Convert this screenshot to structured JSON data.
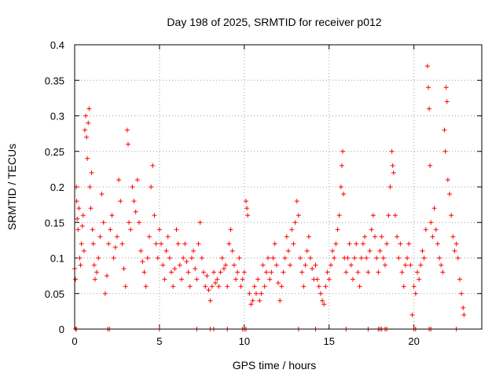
{
  "chart_data": {
    "type": "scatter",
    "title": "Day 198 of 2025, SRMTID for receiver p012",
    "xlabel": "GPS time / hours",
    "ylabel": "SRMTID / TECUs",
    "xlim": [
      0,
      24
    ],
    "ylim": [
      0,
      0.4
    ],
    "grid": true,
    "marker": "plus",
    "color": "#ff0000",
    "xticks": [
      0,
      5,
      10,
      15,
      20
    ],
    "xtick_labels": [
      "0",
      "5",
      "10",
      "15",
      "20"
    ],
    "yticks": [
      0,
      0.05,
      0.1,
      0.15,
      0.2,
      0.25,
      0.3,
      0.35,
      0.4
    ],
    "ytick_labels": [
      "0",
      "0.05",
      "0.1",
      "0.15",
      "0.2",
      "0.25",
      "0.3",
      "0.35",
      "0.4"
    ],
    "series": [
      {
        "name": "SRMTID",
        "points": [
          [
            0.0,
            0.085
          ],
          [
            0.05,
            0.07
          ],
          [
            0.1,
            0.2
          ],
          [
            0.12,
            0.18
          ],
          [
            0.15,
            0.155
          ],
          [
            0.2,
            0.14
          ],
          [
            0.25,
            0.17
          ],
          [
            0.3,
            0.1
          ],
          [
            0.35,
            0.09
          ],
          [
            0.4,
            0.12
          ],
          [
            0.45,
            0.145
          ],
          [
            0.5,
            0.16
          ],
          [
            0.55,
            0.11
          ],
          [
            0.6,
            0.28
          ],
          [
            0.65,
            0.3
          ],
          [
            0.7,
            0.27
          ],
          [
            0.75,
            0.24
          ],
          [
            0.8,
            0.29
          ],
          [
            0.85,
            0.31
          ],
          [
            0.9,
            0.2
          ],
          [
            0.95,
            0.17
          ],
          [
            1.0,
            0.22
          ],
          [
            1.05,
            0.14
          ],
          [
            1.1,
            0.12
          ],
          [
            1.15,
            0.09
          ],
          [
            1.2,
            0.07
          ],
          [
            1.3,
            0.08
          ],
          [
            1.4,
            0.1
          ],
          [
            1.5,
            0.13
          ],
          [
            1.6,
            0.19
          ],
          [
            1.7,
            0.15
          ],
          [
            1.8,
            0.05
          ],
          [
            1.9,
            0.075
          ],
          [
            2.0,
            0.12
          ],
          [
            2.1,
            0.14
          ],
          [
            2.2,
            0.16
          ],
          [
            2.3,
            0.1
          ],
          [
            2.4,
            0.115
          ],
          [
            2.5,
            0.13
          ],
          [
            2.6,
            0.21
          ],
          [
            2.7,
            0.18
          ],
          [
            2.8,
            0.12
          ],
          [
            2.9,
            0.085
          ],
          [
            3.0,
            0.06
          ],
          [
            3.1,
            0.28
          ],
          [
            3.15,
            0.26
          ],
          [
            3.2,
            0.15
          ],
          [
            3.3,
            0.14
          ],
          [
            3.4,
            0.2
          ],
          [
            3.5,
            0.18
          ],
          [
            3.6,
            0.165
          ],
          [
            3.7,
            0.21
          ],
          [
            3.8,
            0.15
          ],
          [
            3.9,
            0.11
          ],
          [
            4.0,
            0.095
          ],
          [
            4.1,
            0.08
          ],
          [
            4.2,
            0.06
          ],
          [
            4.3,
            0.1
          ],
          [
            4.4,
            0.13
          ],
          [
            4.5,
            0.2
          ],
          [
            4.6,
            0.23
          ],
          [
            4.7,
            0.16
          ],
          [
            4.8,
            0.12
          ],
          [
            4.9,
            0.1
          ],
          [
            5.0,
            0.14
          ],
          [
            5.1,
            0.12
          ],
          [
            5.2,
            0.09
          ],
          [
            5.3,
            0.07
          ],
          [
            5.4,
            0.11
          ],
          [
            5.5,
            0.13
          ],
          [
            5.6,
            0.1
          ],
          [
            5.7,
            0.08
          ],
          [
            5.8,
            0.06
          ],
          [
            5.9,
            0.085
          ],
          [
            6.0,
            0.14
          ],
          [
            6.1,
            0.12
          ],
          [
            6.2,
            0.09
          ],
          [
            6.3,
            0.07
          ],
          [
            6.4,
            0.1
          ],
          [
            6.5,
            0.12
          ],
          [
            6.6,
            0.095
          ],
          [
            6.7,
            0.08
          ],
          [
            6.8,
            0.06
          ],
          [
            6.9,
            0.1
          ],
          [
            7.0,
            0.11
          ],
          [
            7.1,
            0.085
          ],
          [
            7.2,
            0.07
          ],
          [
            7.3,
            0.12
          ],
          [
            7.4,
            0.15
          ],
          [
            7.5,
            0.1
          ],
          [
            7.6,
            0.08
          ],
          [
            7.7,
            0.06
          ],
          [
            7.8,
            0.075
          ],
          [
            7.9,
            0.055
          ],
          [
            8.0,
            0.04
          ],
          [
            8.1,
            0.06
          ],
          [
            8.2,
            0.08
          ],
          [
            8.3,
            0.065
          ],
          [
            8.4,
            0.07
          ],
          [
            8.5,
            0.06
          ],
          [
            8.6,
            0.08
          ],
          [
            8.7,
            0.1
          ],
          [
            8.8,
            0.085
          ],
          [
            8.9,
            0.09
          ],
          [
            9.0,
            0.06
          ],
          [
            9.1,
            0.12
          ],
          [
            9.2,
            0.14
          ],
          [
            9.3,
            0.11
          ],
          [
            9.4,
            0.09
          ],
          [
            9.5,
            0.07
          ],
          [
            9.6,
            0.08
          ],
          [
            9.7,
            0.1
          ],
          [
            9.8,
            0.06
          ],
          [
            9.9,
            0.07
          ],
          [
            10.0,
            0.08
          ],
          [
            10.1,
            0.18
          ],
          [
            10.15,
            0.17
          ],
          [
            10.2,
            0.16
          ],
          [
            10.3,
            0.05
          ],
          [
            10.4,
            0.035
          ],
          [
            10.5,
            0.04
          ],
          [
            10.6,
            0.06
          ],
          [
            10.7,
            0.05
          ],
          [
            10.8,
            0.07
          ],
          [
            10.9,
            0.04
          ],
          [
            11.0,
            0.05
          ],
          [
            11.1,
            0.09
          ],
          [
            11.2,
            0.06
          ],
          [
            11.3,
            0.08
          ],
          [
            11.4,
            0.1
          ],
          [
            11.5,
            0.07
          ],
          [
            11.6,
            0.08
          ],
          [
            11.7,
            0.1
          ],
          [
            11.8,
            0.12
          ],
          [
            11.9,
            0.09
          ],
          [
            12.0,
            0.065
          ],
          [
            12.1,
            0.04
          ],
          [
            12.2,
            0.06
          ],
          [
            12.3,
            0.08
          ],
          [
            12.4,
            0.1
          ],
          [
            12.5,
            0.13
          ],
          [
            12.6,
            0.11
          ],
          [
            12.7,
            0.09
          ],
          [
            12.8,
            0.14
          ],
          [
            12.9,
            0.12
          ],
          [
            13.0,
            0.15
          ],
          [
            13.1,
            0.18
          ],
          [
            13.2,
            0.16
          ],
          [
            13.3,
            0.1
          ],
          [
            13.4,
            0.08
          ],
          [
            13.5,
            0.06
          ],
          [
            13.6,
            0.09
          ],
          [
            13.7,
            0.11
          ],
          [
            13.8,
            0.13
          ],
          [
            13.9,
            0.1
          ],
          [
            14.0,
            0.085
          ],
          [
            14.1,
            0.07
          ],
          [
            14.2,
            0.09
          ],
          [
            14.3,
            0.07
          ],
          [
            14.4,
            0.06
          ],
          [
            14.5,
            0.05
          ],
          [
            14.6,
            0.04
          ],
          [
            14.7,
            0.035
          ],
          [
            14.8,
            0.06
          ],
          [
            14.9,
            0.08
          ],
          [
            15.0,
            0.07
          ],
          [
            15.1,
            0.09
          ],
          [
            15.2,
            0.11
          ],
          [
            15.3,
            0.1
          ],
          [
            15.4,
            0.12
          ],
          [
            15.5,
            0.14
          ],
          [
            15.6,
            0.16
          ],
          [
            15.7,
            0.2
          ],
          [
            15.75,
            0.23
          ],
          [
            15.8,
            0.25
          ],
          [
            15.85,
            0.19
          ],
          [
            15.9,
            0.1
          ],
          [
            16.0,
            0.08
          ],
          [
            16.1,
            0.1
          ],
          [
            16.2,
            0.12
          ],
          [
            16.3,
            0.09
          ],
          [
            16.4,
            0.07
          ],
          [
            16.5,
            0.1
          ],
          [
            16.6,
            0.12
          ],
          [
            16.7,
            0.08
          ],
          [
            16.8,
            0.06
          ],
          [
            16.9,
            0.1
          ],
          [
            17.0,
            0.12
          ],
          [
            17.1,
            0.13
          ],
          [
            17.2,
            0.1
          ],
          [
            17.3,
            0.08
          ],
          [
            17.4,
            0.11
          ],
          [
            17.5,
            0.14
          ],
          [
            17.6,
            0.16
          ],
          [
            17.7,
            0.13
          ],
          [
            17.8,
            0.1
          ],
          [
            17.9,
            0.08
          ],
          [
            18.0,
            0.11
          ],
          [
            18.1,
            0.13
          ],
          [
            18.2,
            0.1
          ],
          [
            18.3,
            0.09
          ],
          [
            18.4,
            0.12
          ],
          [
            18.5,
            0.16
          ],
          [
            18.6,
            0.2
          ],
          [
            18.7,
            0.25
          ],
          [
            18.75,
            0.23
          ],
          [
            18.8,
            0.22
          ],
          [
            18.9,
            0.16
          ],
          [
            19.0,
            0.13
          ],
          [
            19.1,
            0.1
          ],
          [
            19.2,
            0.12
          ],
          [
            19.3,
            0.08
          ],
          [
            19.4,
            0.06
          ],
          [
            19.5,
            0.09
          ],
          [
            19.6,
            0.1
          ],
          [
            19.7,
            0.12
          ],
          [
            19.8,
            0.09
          ],
          [
            19.9,
            0.02
          ],
          [
            20.0,
            0.06
          ],
          [
            20.1,
            0.05
          ],
          [
            20.2,
            0.08
          ],
          [
            20.3,
            0.07
          ],
          [
            20.4,
            0.09
          ],
          [
            20.5,
            0.11
          ],
          [
            20.6,
            0.1
          ],
          [
            20.7,
            0.14
          ],
          [
            20.8,
            0.37
          ],
          [
            20.85,
            0.34
          ],
          [
            20.9,
            0.31
          ],
          [
            20.95,
            0.23
          ],
          [
            21.0,
            0.15
          ],
          [
            21.1,
            0.13
          ],
          [
            21.2,
            0.17
          ],
          [
            21.3,
            0.14
          ],
          [
            21.4,
            0.12
          ],
          [
            21.5,
            0.1
          ],
          [
            21.6,
            0.09
          ],
          [
            21.7,
            0.08
          ],
          [
            21.8,
            0.28
          ],
          [
            21.85,
            0.25
          ],
          [
            21.9,
            0.34
          ],
          [
            21.95,
            0.32
          ],
          [
            22.0,
            0.21
          ],
          [
            22.1,
            0.19
          ],
          [
            22.2,
            0.16
          ],
          [
            22.3,
            0.13
          ],
          [
            22.4,
            0.11
          ],
          [
            22.5,
            0.12
          ],
          [
            22.6,
            0.1
          ],
          [
            22.7,
            0.07
          ],
          [
            22.8,
            0.05
          ],
          [
            22.9,
            0.03
          ],
          [
            22.95,
            0.02
          ]
        ]
      }
    ]
  }
}
